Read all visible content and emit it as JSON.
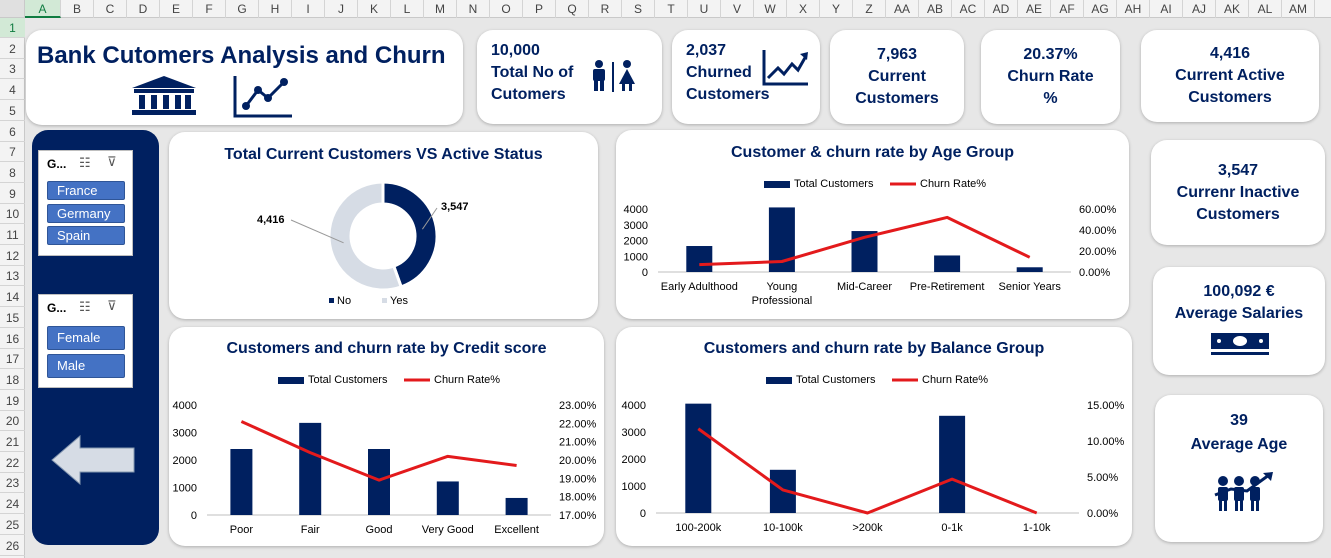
{
  "grid": {
    "columns": [
      "A",
      "B",
      "C",
      "D",
      "E",
      "F",
      "G",
      "H",
      "I",
      "J",
      "K",
      "L",
      "M",
      "N",
      "O",
      "P",
      "Q",
      "R",
      "S",
      "T",
      "U",
      "V",
      "W",
      "X",
      "Y",
      "Z",
      "AA",
      "AB",
      "AC",
      "AD",
      "AE",
      "AF",
      "AG",
      "AH",
      "AI",
      "AJ",
      "AK",
      "AL",
      "AM"
    ],
    "rows": [
      "1",
      "2",
      "3",
      "4",
      "5",
      "6",
      "7",
      "8",
      "9",
      "10",
      "11",
      "12",
      "13",
      "14",
      "15",
      "16",
      "17",
      "18",
      "19",
      "20",
      "21",
      "22",
      "23",
      "24",
      "25",
      "26"
    ]
  },
  "header": {
    "title": "Bank Cutomers Analysis and Churn"
  },
  "kpis": {
    "total": {
      "value": "10,000",
      "l1": "Total No of",
      "l2": "Cutomers"
    },
    "churned": {
      "value": "2,037",
      "l1": "Churned",
      "l2": "Customers"
    },
    "current": {
      "value": "7,963",
      "l1": "Current",
      "l2": "Customers"
    },
    "churn_rate": {
      "value": "20.37%",
      "l1": "Churn Rate",
      "l2": "%"
    },
    "active": {
      "value": "4,416",
      "l1": "Current Active",
      "l2": "Customers"
    },
    "inactive": {
      "value": "3,547",
      "l1": "Currenr Inactive",
      "l2": "Customers"
    },
    "salary": {
      "value": "100,092 €",
      "l1": "Average Salaries"
    },
    "age": {
      "value": "39",
      "l1": "Average Age"
    }
  },
  "slicers": {
    "geo": {
      "header": "G...",
      "items": [
        "France",
        "Germany",
        "Spain"
      ]
    },
    "gender": {
      "header": "G...",
      "items": [
        "Female",
        "Male"
      ]
    }
  },
  "colors": {
    "navy": "#002060",
    "red": "#e31a1c",
    "light": "#d6dce5"
  },
  "chart_data": [
    {
      "id": "donut",
      "type": "pie",
      "title": "Total Current Customers VS Active Status",
      "categories": [
        "No",
        "Yes"
      ],
      "values": [
        3547,
        4416
      ],
      "labels": [
        "3,547",
        "4,416"
      ],
      "legend": [
        "No",
        "Yes"
      ]
    },
    {
      "id": "age",
      "type": "bar",
      "title": "Customer & churn rate by Age Group",
      "categories": [
        "Early Adulthood",
        "Young Professional",
        "Mid-Career",
        "Pre-Retirement",
        "Senior Years"
      ],
      "series": [
        {
          "name": "Total Customers",
          "values": [
            1650,
            4100,
            2600,
            1050,
            300
          ]
        },
        {
          "name": "Churn Rate%",
          "values": [
            0.07,
            0.1,
            0.33,
            0.52,
            0.14
          ]
        }
      ],
      "y_ticks": [
        "4000",
        "3000",
        "2000",
        "1000",
        "0"
      ],
      "y2_ticks": [
        "60.00%",
        "40.00%",
        "20.00%",
        "0.00%"
      ],
      "ylim": [
        0,
        4000
      ],
      "y2lim": [
        0,
        0.6
      ]
    },
    {
      "id": "credit",
      "type": "bar",
      "title": "Customers and churn rate by Credit score",
      "categories": [
        "Poor",
        "Fair",
        "Good",
        "Very Good",
        "Excellent"
      ],
      "series": [
        {
          "name": "Total Customers",
          "values": [
            2400,
            3350,
            2400,
            1220,
            620
          ]
        },
        {
          "name": "Churn Rate%",
          "values": [
            0.221,
            0.204,
            0.189,
            0.202,
            0.197
          ]
        }
      ],
      "y_ticks": [
        "4000",
        "3000",
        "2000",
        "1000",
        "0"
      ],
      "y2_ticks": [
        "23.00%",
        "22.00%",
        "21.00%",
        "20.00%",
        "19.00%",
        "18.00%",
        "17.00%"
      ],
      "ylim": [
        0,
        4000
      ],
      "y2lim": [
        0.17,
        0.23
      ]
    },
    {
      "id": "balance",
      "type": "bar",
      "title": "Customers and churn rate by Balance Group",
      "categories": [
        "100-200k",
        "10-100k",
        ">200k",
        "0-1k",
        "1-10k"
      ],
      "series": [
        {
          "name": "Total Customers",
          "values": [
            4050,
            1600,
            0,
            3600,
            0
          ]
        },
        {
          "name": "Churn Rate%",
          "values": [
            0.117,
            0.032,
            0.0,
            0.047,
            0.0
          ]
        }
      ],
      "y_ticks": [
        "4000",
        "3000",
        "2000",
        "1000",
        "0"
      ],
      "y2_ticks": [
        "15.00%",
        "10.00%",
        "5.00%",
        "0.00%"
      ],
      "ylim": [
        0,
        4000
      ],
      "y2lim": [
        0,
        0.15
      ]
    }
  ]
}
